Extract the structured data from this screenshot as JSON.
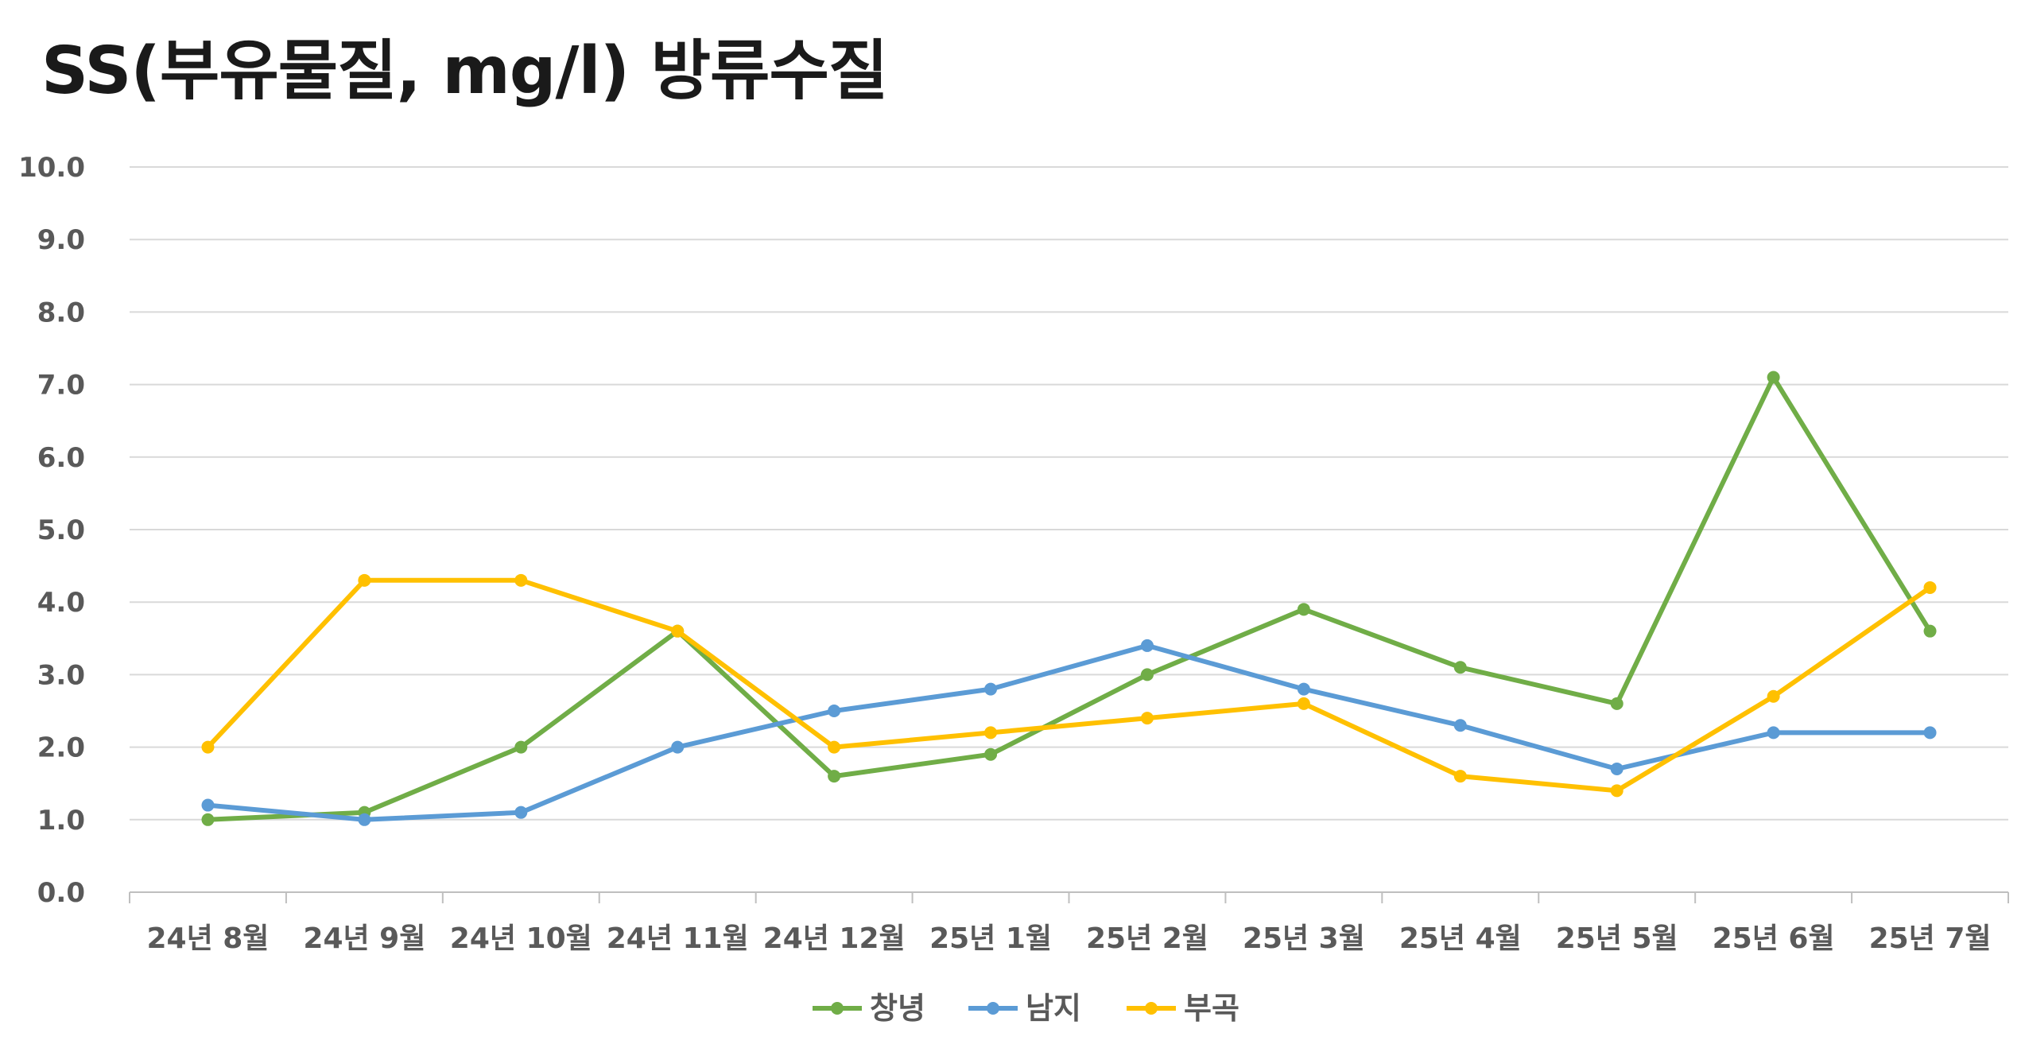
{
  "chart_data": {
    "type": "line",
    "title": "SS(부유물질, mg/l) 방류수질",
    "xlabel": "",
    "ylabel": "",
    "ylim": [
      0,
      10
    ],
    "y_ticks": [
      "0.0",
      "1.0",
      "2.0",
      "3.0",
      "4.0",
      "5.0",
      "6.0",
      "7.0",
      "8.0",
      "9.0",
      "10.0"
    ],
    "grid": true,
    "legend_position": "bottom",
    "categories": [
      "24년 8월",
      "24년 9월",
      "24년 10월",
      "24년 11월",
      "24년 12월",
      "25년 1월",
      "25년 2월",
      "25년 3월",
      "25년 4월",
      "25년 5월",
      "25년 6월",
      "25년 7월"
    ],
    "series": [
      {
        "name": "창녕",
        "color": "#70ad47",
        "values": [
          1.0,
          1.1,
          2.0,
          3.6,
          1.6,
          1.9,
          3.0,
          3.9,
          3.1,
          2.6,
          7.1,
          3.6
        ]
      },
      {
        "name": "남지",
        "color": "#5b9bd5",
        "values": [
          1.2,
          1.0,
          1.1,
          2.0,
          2.5,
          2.8,
          3.4,
          2.8,
          2.3,
          1.7,
          2.2,
          2.2
        ]
      },
      {
        "name": "부곡",
        "color": "#ffc000",
        "values": [
          2.0,
          4.3,
          4.3,
          3.6,
          2.0,
          2.2,
          2.4,
          2.6,
          1.6,
          1.4,
          2.7,
          4.2
        ]
      }
    ]
  }
}
